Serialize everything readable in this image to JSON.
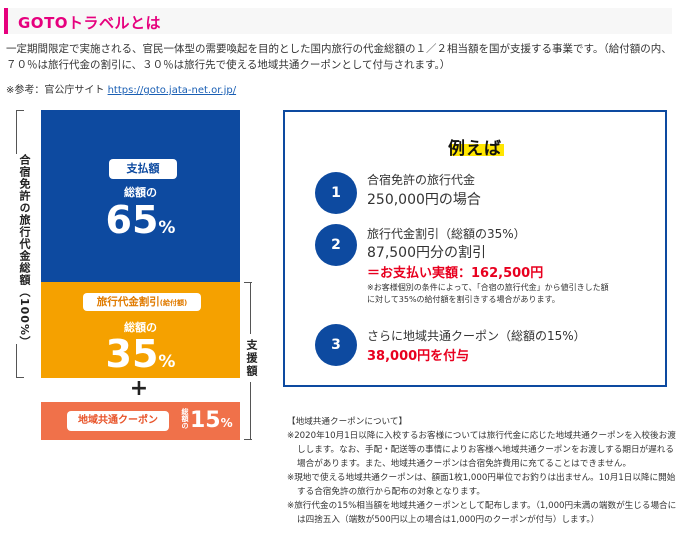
{
  "header": {
    "title": "GOTOトラベルとは"
  },
  "intro": {
    "line1": "一定期間限定で実施される、官民一体型の需要喚起を目的とした国内旅行の代金総額の１／２相当額を国が支援する事業です。（給付額の内、",
    "line2": "７０％は旅行代金の割引に、３０％は旅行先で使える地域共通クーポンとして付与されます。）",
    "ref_prefix": "※参考：官公庁サイト",
    "ref_link": "https://goto.jata-net.or.jp/"
  },
  "breakdown": {
    "left_label": "合宿免許の旅行代金総額（100%）",
    "right_label": "支援額",
    "blue": {
      "badge": "支払額",
      "sub": "総額の",
      "value": "65",
      "unit": "%",
      "color": "#0d4aa0"
    },
    "orange": {
      "badge": "旅行代金割引",
      "badge_small": "(給付額)",
      "sub": "総額の",
      "value": "35",
      "unit": "%",
      "color": "#f5a100"
    },
    "plus": "+",
    "red": {
      "badge": "地域共通クーポン",
      "small": "総額の",
      "value": "15",
      "unit": "%",
      "color": "#f0714a"
    }
  },
  "example": {
    "title": "例えば",
    "items": [
      {
        "num": "1",
        "line1": "合宿免許の旅行代金",
        "line2": "250,000円の場合"
      },
      {
        "num": "2",
        "line1": "旅行代金割引（総額の35%）",
        "line2": "87,500円分の割引",
        "line3": "＝お支払い実額：162,500円",
        "note1": "※お客様個別の条件によって、「合宿の旅行代金」から値引きした額",
        "note2": "に対して35%の給付額を割引きする場合があります。"
      },
      {
        "num": "3",
        "line1": "さらに地域共通クーポン（総額の15%）",
        "line2": "38,000円を付与"
      }
    ]
  },
  "notes": {
    "heading": "【地域共通クーポンについて】",
    "items": [
      "※2020年10月1日以降に入校するお客様については旅行代金に応じた地域共通クーポンを入校後お渡しします。なお、手配・配送等の事情によりお客様へ地域共通クーポンをお渡しする期日が遅れる場合があります。また、地域共通クーポンは合宿免許費用に充てることはできません。",
      "※現地で使える地域共通クーポンは、額面1枚1,000円単位でお釣りは出ません。10月1日以降に開始する合宿免許の旅行から配布の対象となります。",
      "※旅行代金の15%相当額を地域共通クーポンとして配布します。（1,000円未満の端数が生じる場合には四捨五入（端数が500円以上の場合は1,000円のクーポンが付与）します。）"
    ]
  }
}
